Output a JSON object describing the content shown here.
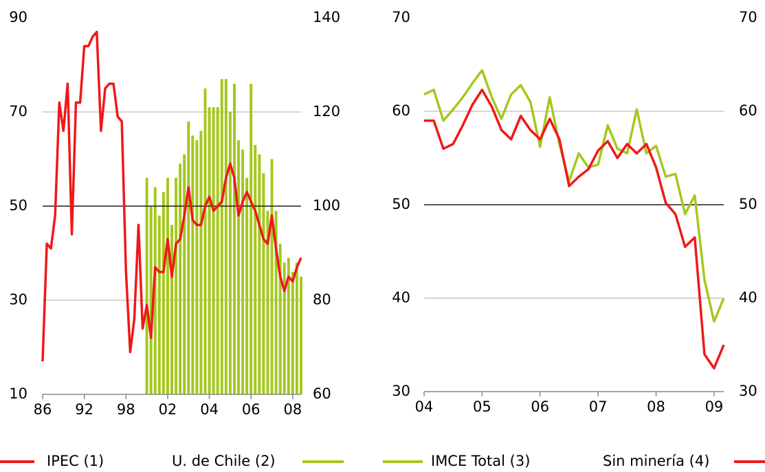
{
  "chart_data": [
    {
      "type": "bar-line",
      "categories": [
        "86",
        null,
        null,
        null,
        null,
        null,
        null,
        null,
        null,
        null,
        "92",
        null,
        null,
        null,
        null,
        null,
        null,
        null,
        null,
        null,
        "98",
        null,
        null,
        null,
        null,
        null,
        null,
        null,
        null,
        null,
        "02",
        null,
        null,
        null,
        null,
        null,
        null,
        null,
        null,
        null,
        "04",
        null,
        null,
        null,
        null,
        null,
        null,
        null,
        null,
        null,
        "06",
        null,
        null,
        null,
        null,
        null,
        null,
        null,
        null,
        null,
        "08",
        null,
        null
      ],
      "series": [
        {
          "name": "U. de Chile (2)",
          "kind": "bar",
          "axis": "y2",
          "color": "#a4c81e",
          "values": [
            null,
            null,
            null,
            null,
            null,
            null,
            null,
            null,
            null,
            null,
            null,
            null,
            null,
            null,
            null,
            null,
            null,
            null,
            null,
            null,
            null,
            null,
            null,
            null,
            null,
            106,
            100,
            104,
            98,
            103,
            106,
            96,
            106,
            109,
            111,
            118,
            115,
            114,
            116,
            125,
            121,
            121,
            121,
            127,
            127,
            120,
            126,
            114,
            112,
            106,
            126,
            113,
            111,
            107,
            99,
            110,
            99,
            92,
            88,
            89,
            86,
            88,
            85
          ]
        },
        {
          "name": "IPEC (1)",
          "kind": "line",
          "axis": "y",
          "color": "#f01818",
          "values": [
            17,
            42,
            41,
            48,
            72,
            66,
            76,
            44,
            72,
            72,
            84,
            84,
            86,
            87,
            66,
            75,
            76,
            76,
            69,
            68,
            36,
            19,
            26,
            46,
            24,
            29,
            22,
            37,
            36,
            36,
            43,
            35,
            42,
            43,
            48,
            54,
            47,
            46,
            46,
            50,
            52,
            49,
            50,
            51,
            56,
            59,
            56,
            48,
            51,
            53,
            51,
            49,
            46,
            43,
            42,
            48,
            41,
            35,
            32,
            35,
            34,
            37,
            39
          ]
        }
      ],
      "ylim": [
        10,
        90
      ],
      "yticks": [
        10,
        30,
        50,
        70,
        90
      ],
      "y2lim": [
        60,
        140
      ],
      "y2ticks": [
        60,
        80,
        100,
        120,
        140
      ],
      "refline": 50,
      "grid": true
    },
    {
      "type": "line",
      "categories": [
        "04",
        null,
        null,
        null,
        null,
        null,
        "05",
        null,
        null,
        null,
        null,
        null,
        "06",
        null,
        null,
        null,
        null,
        null,
        "07",
        null,
        null,
        null,
        null,
        null,
        "08",
        null,
        null,
        null,
        null,
        null,
        "09",
        null
      ],
      "series": [
        {
          "name": "IMCE Total (3)",
          "kind": "line",
          "axis": "y",
          "color": "#a4c81e",
          "values": [
            61.8,
            62.3,
            59.0,
            60.2,
            61.5,
            63.0,
            64.4,
            61.5,
            59.2,
            61.8,
            62.8,
            61.0,
            56.2,
            61.5,
            56.5,
            52.5,
            55.5,
            54.0,
            54.3,
            58.5,
            56.0,
            55.5,
            60.2,
            55.5,
            56.3,
            53.0,
            53.3,
            49.0,
            51.0,
            42.0,
            37.5,
            40.0
          ]
        },
        {
          "name": "Sin minería (4)",
          "kind": "line",
          "axis": "y2",
          "color": "#f01818",
          "values": [
            59.0,
            59.0,
            56.0,
            56.5,
            58.5,
            60.7,
            62.3,
            60.5,
            58.0,
            57.0,
            59.5,
            58.0,
            57.0,
            59.2,
            57.0,
            52.0,
            53.0,
            53.8,
            55.8,
            56.8,
            55.0,
            56.5,
            55.5,
            56.5,
            54.0,
            50.2,
            49.0,
            45.5,
            46.5,
            34.0,
            32.5,
            35.0
          ]
        }
      ],
      "ylim": [
        30,
        70
      ],
      "yticks": [
        30,
        40,
        50,
        60,
        70
      ],
      "y2lim": [
        30,
        70
      ],
      "y2ticks": [
        30,
        40,
        50,
        60,
        70
      ],
      "refline": 50,
      "grid": true
    }
  ]
}
